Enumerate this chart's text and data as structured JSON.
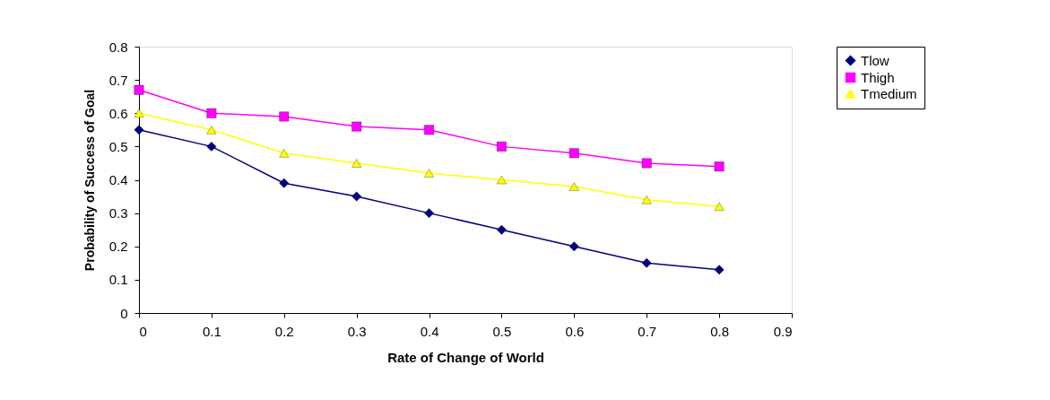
{
  "chart_data": {
    "type": "line",
    "xlabel": "Rate of Change of World",
    "ylabel": "Probability of Success of Goal",
    "x": [
      0,
      0.1,
      0.2,
      0.3,
      0.4,
      0.5,
      0.6,
      0.7,
      0.8
    ],
    "series": [
      {
        "name": "Tlow",
        "color": "#000080",
        "marker": "diamond",
        "values": [
          0.55,
          0.5,
          0.39,
          0.35,
          0.3,
          0.25,
          0.2,
          0.15,
          0.13
        ]
      },
      {
        "name": "Thigh",
        "color": "#ff00ff",
        "marker": "square",
        "values": [
          0.67,
          0.6,
          0.59,
          0.56,
          0.55,
          0.5,
          0.48,
          0.45,
          0.44
        ]
      },
      {
        "name": "Tmedium",
        "color": "#ffff00",
        "marker": "triangle",
        "values": [
          0.6,
          0.55,
          0.48,
          0.45,
          0.42,
          0.4,
          0.38,
          0.34,
          0.32
        ]
      }
    ],
    "xlim": [
      0,
      0.9
    ],
    "xticks": [
      0,
      0.1,
      0.2,
      0.3,
      0.4,
      0.5,
      0.6,
      0.7,
      0.8,
      0.9
    ],
    "ylim": [
      0,
      0.8
    ],
    "yticks": [
      0,
      0.1,
      0.2,
      0.3,
      0.4,
      0.5,
      0.6,
      0.7,
      0.8
    ],
    "grid": false,
    "legend": "right",
    "line_style": "solid"
  }
}
